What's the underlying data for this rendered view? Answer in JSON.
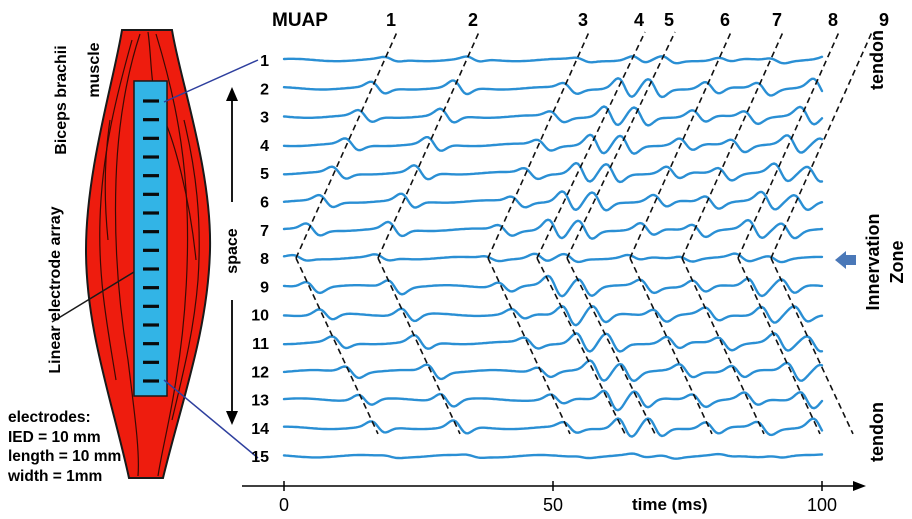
{
  "title": "MUAP",
  "muap_labels": [
    "1",
    "2",
    "3",
    "4",
    "5",
    "6",
    "7",
    "8",
    "9"
  ],
  "channel_labels": [
    "1",
    "2",
    "3",
    "4",
    "5",
    "6",
    "7",
    "8",
    "9",
    "10",
    "11",
    "12",
    "13",
    "14",
    "15"
  ],
  "space_label": "space",
  "time_axis": {
    "label": "time (ms)",
    "ticks": [
      "0",
      "50",
      "100"
    ]
  },
  "muscle": {
    "name": "Biceps brachii muscle",
    "name_line1": "Biceps brachii",
    "name_line2": "muscle",
    "array_label": "Linear electrode array",
    "electrode_count": 16
  },
  "electrodes_note": [
    "electrodes:",
    "IED = 10 mm",
    "length = 10 mm",
    "width = 1mm"
  ],
  "right_labels": {
    "tendon_top": "tendon",
    "innervation": "Innervation Zone",
    "innervation_line1": "Innervation",
    "innervation_line2": "Zone",
    "tendon_bottom": "tendon"
  },
  "colors": {
    "signal": "#2a8fd4",
    "muscle": "#ee1c0e",
    "array": "#32b4e6",
    "connector": "#2e3f9e",
    "arrow": "#4a78b8"
  }
}
